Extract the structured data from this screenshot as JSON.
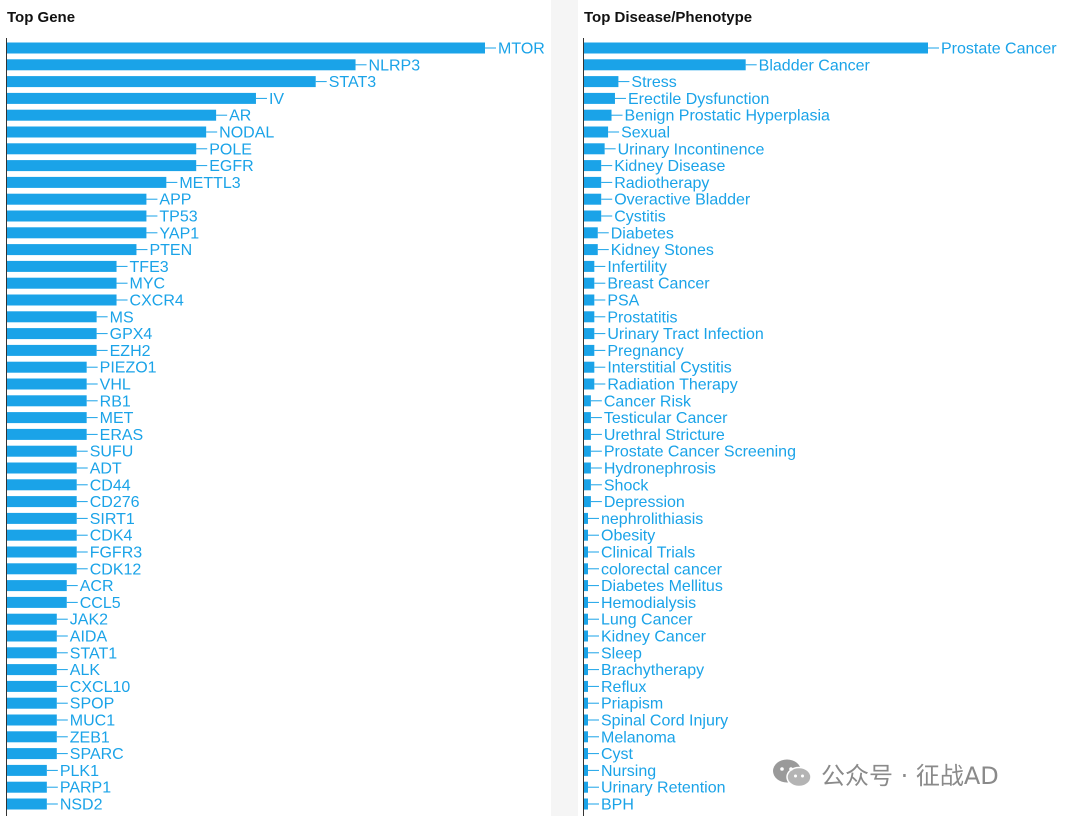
{
  "colors": {
    "bar": "#1aa3e8",
    "label": "#1aa3e8",
    "gutter": "#f5f5f5",
    "title": "#111111"
  },
  "watermark": {
    "text": "公众号 · 征战AD",
    "icon": "wechat-icon"
  },
  "chart_data": [
    {
      "type": "bar",
      "orientation": "horizontal",
      "title": "Top Gene",
      "xlabel": "",
      "ylabel": "",
      "grid": false,
      "categories": [
        "MTOR",
        "NLRP3",
        "STAT3",
        "IV",
        "AR",
        "NODAL",
        "POLE",
        "EGFR",
        "METTL3",
        "APP",
        "TP53",
        "YAP1",
        "PTEN",
        "TFE3",
        "MYC",
        "CXCR4",
        "MS",
        "GPX4",
        "EZH2",
        "PIEZO1",
        "VHL",
        "RB1",
        "MET",
        "ERAS",
        "SUFU",
        "ADT",
        "CD44",
        "CD276",
        "SIRT1",
        "CDK4",
        "FGFR3",
        "CDK12",
        "ACR",
        "CCL5",
        "JAK2",
        "AIDA",
        "STAT1",
        "ALK",
        "CXCL10",
        "SPOP",
        "MUC1",
        "ZEB1",
        "SPARC",
        "PLK1",
        "PARP1",
        "NSD2"
      ],
      "values": [
        48,
        35,
        31,
        25,
        21,
        20,
        19,
        19,
        16,
        14,
        14,
        14,
        13,
        11,
        11,
        11,
        9,
        9,
        9,
        8,
        8,
        8,
        8,
        8,
        7,
        7,
        7,
        7,
        7,
        7,
        7,
        7,
        6,
        6,
        5,
        5,
        5,
        5,
        5,
        5,
        5,
        5,
        5,
        4,
        4,
        4
      ],
      "xlim": [
        0,
        48
      ]
    },
    {
      "type": "bar",
      "orientation": "horizontal",
      "title": "Top Disease/Phenotype",
      "xlabel": "",
      "ylabel": "",
      "grid": false,
      "categories": [
        "Prostate Cancer",
        "Bladder Cancer",
        "Stress",
        "Erectile Dysfunction",
        "Benign Prostatic Hyperplasia",
        "Sexual",
        "Urinary Incontinence",
        "Kidney Disease",
        "Radiotherapy",
        "Overactive Bladder",
        "Cystitis",
        "Diabetes",
        "Kidney Stones",
        "Infertility",
        "Breast Cancer",
        "PSA",
        "Prostatitis",
        "Urinary Tract Infection",
        "Pregnancy",
        "Interstitial Cystitis",
        "Radiation Therapy",
        "Cancer Risk",
        "Testicular Cancer",
        "Urethral Stricture",
        "Prostate Cancer Screening",
        "Hydronephrosis",
        "Shock",
        "Depression",
        "nephrolithiasis",
        "Obesity",
        "Clinical Trials",
        "colorectal cancer",
        "Diabetes Mellitus",
        "Hemodialysis",
        "Lung Cancer",
        "Kidney Cancer",
        "Sleep",
        "Brachytherapy",
        "Reflux",
        "Priapism",
        "Spinal Cord Injury",
        "Melanoma",
        "Cyst",
        "Nursing",
        "Urinary Retention",
        "BPH"
      ],
      "values": [
        100,
        47,
        10,
        9,
        8,
        7,
        6,
        5,
        5,
        5,
        5,
        4,
        4,
        3,
        3,
        3,
        3,
        3,
        3,
        3,
        3,
        2,
        2,
        2,
        2,
        2,
        2,
        2,
        1,
        1,
        1,
        1,
        1,
        1,
        1,
        1,
        1,
        1,
        1,
        1,
        1,
        1,
        1,
        1,
        1,
        1
      ],
      "xlim": [
        0,
        100
      ]
    }
  ]
}
